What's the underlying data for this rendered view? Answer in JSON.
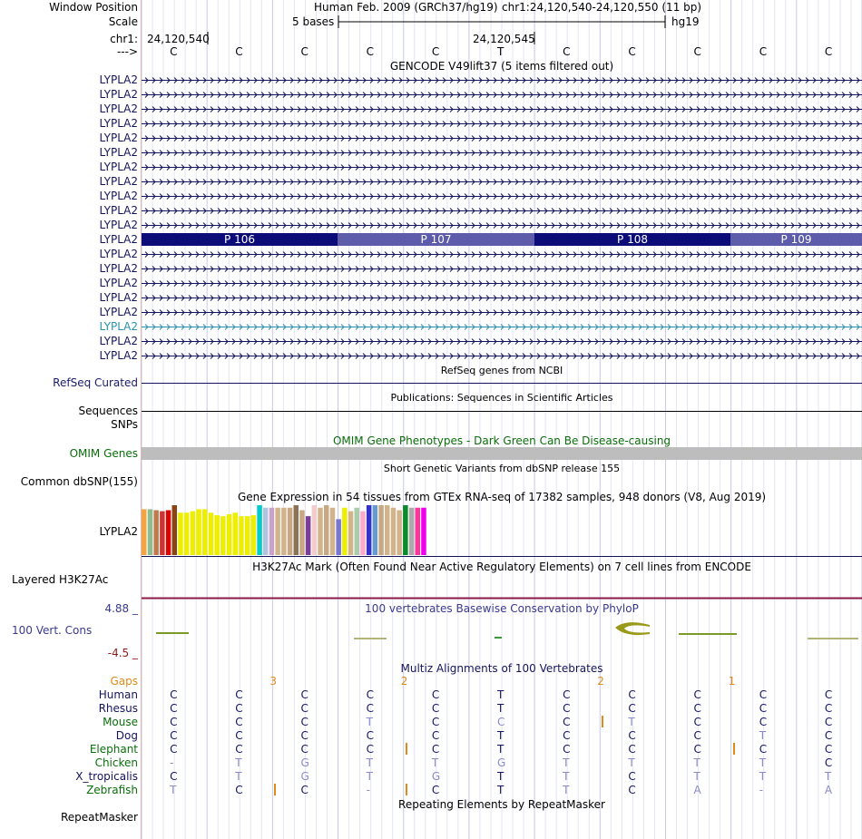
{
  "header": {
    "window_position_label": "Window Position",
    "assembly_text": "Human Feb. 2009 (GRCh37/hg19)",
    "region_text": "chr1:24,120,540-24,120,550 (11 bp)",
    "scale_label": "Scale",
    "scale_text": "5 bases",
    "hg19_label": "hg19",
    "chrom_label": "chr1:",
    "coord_start": "24,120,540",
    "coord_mid": "24,120,545",
    "strand_label": "--->",
    "bases": [
      "C",
      "C",
      "C",
      "C",
      "C",
      "T",
      "C",
      "C",
      "C",
      "C",
      "C"
    ]
  },
  "gencode": {
    "title": "GENCODE V49lift37 (5 items filtered out)",
    "gene_label": "LYPLA2",
    "rows": 20,
    "highlight_row": 11,
    "teal_row": 17,
    "exon_segments": [
      "P 106",
      "P 107",
      "P 108",
      "P 109"
    ],
    "colors": {
      "dark": "#0c0c78",
      "light": "#5c5cab",
      "teal": "#2892ae",
      "navy": "#14145e"
    }
  },
  "refseq": {
    "title": "RefSeq genes from NCBI",
    "label": "RefSeq Curated"
  },
  "publications": {
    "title": "Publications: Sequences in Scientific Articles",
    "label": "Sequences"
  },
  "snps": {
    "label": "SNPs"
  },
  "omim": {
    "title": "OMIM Gene Phenotypes - Dark Green Can Be Disease-causing",
    "label": "OMIM Genes",
    "color": "#0a6e0a"
  },
  "dbsnp": {
    "title": "Short Genetic Variants from dbSNP release 155",
    "label": "Common dbSNP(155)"
  },
  "gtex": {
    "title": "Gene Expression in 54 tissues from GTEx RNA-seq of 17382 samples, 948 donors (V8, Aug 2019)",
    "label": "LYPLA2"
  },
  "h3k27": {
    "title": "H3K27Ac Mark (Often Found Near Active Regulatory Elements) on 7 cell lines from ENCODE",
    "label": "Layered H3K27Ac"
  },
  "conservation": {
    "title": "100 vertebrates Basewise Conservation by PhyloP",
    "label": "100 Vert. Cons",
    "max_label": "4.88 _",
    "min_label": "-4.5 _"
  },
  "multiz": {
    "title": "Multiz Alignments of 100 Vertebrates",
    "gaps_label": "Gaps",
    "gap_numbers": [
      {
        "text": "3",
        "col": 1.5
      },
      {
        "text": "2",
        "col": 3.5
      },
      {
        "text": "2",
        "col": 6.5
      },
      {
        "text": "1",
        "col": 8.5
      }
    ],
    "species": [
      {
        "name": "Human",
        "color": "#14145e",
        "bases": [
          "C",
          "C",
          "C",
          "C",
          "C",
          "T",
          "C",
          "C",
          "C",
          "C",
          "C"
        ],
        "faint": []
      },
      {
        "name": "Rhesus",
        "color": "#14145e",
        "bases": [
          "C",
          "C",
          "C",
          "C",
          "C",
          "T",
          "C",
          "C",
          "C",
          "C",
          "C"
        ],
        "faint": []
      },
      {
        "name": "Mouse",
        "color": "#0a6e0a",
        "bases": [
          "C",
          "C",
          "C",
          "T",
          "C",
          "C",
          "C",
          "T",
          "C",
          "C",
          "C"
        ],
        "faint": [
          3,
          5,
          7
        ]
      },
      {
        "name": "Dog",
        "color": "#14145e",
        "bases": [
          "C",
          "C",
          "C",
          "C",
          "C",
          "T",
          "C",
          "C",
          "C",
          "T",
          "C"
        ],
        "faint": [
          9
        ]
      },
      {
        "name": "Elephant",
        "color": "#0a6e0a",
        "bases": [
          "C",
          "C",
          "C",
          "C",
          "C",
          "T",
          "C",
          "C",
          "C",
          "C",
          "C"
        ],
        "faint": []
      },
      {
        "name": "Chicken",
        "color": "#0a6e0a",
        "bases": [
          "-",
          "T",
          "G",
          "T",
          "T",
          "G",
          "T",
          "T",
          "T",
          "T",
          "C"
        ],
        "faint": [
          0,
          1,
          2,
          3,
          4,
          5,
          6,
          7,
          8,
          9
        ]
      },
      {
        "name": "X_tropicalis",
        "color": "#14145e",
        "bases": [
          "C",
          "T",
          "G",
          "T",
          "G",
          "T",
          "T",
          "C",
          "T",
          "T",
          "T"
        ],
        "faint": [
          1,
          2,
          3,
          4,
          6,
          8,
          9,
          10
        ]
      },
      {
        "name": "Zebrafish",
        "color": "#0a6e0a",
        "bases": [
          "T",
          "C",
          "C",
          "-",
          "C",
          "T",
          "T",
          "C",
          "A",
          "-",
          "A"
        ],
        "faint": [
          0,
          3,
          6,
          8,
          9,
          10
        ]
      }
    ]
  },
  "repeat": {
    "title": "Repeating Elements by RepeatMasker",
    "label": "RepeatMasker"
  },
  "gtex_bars": [
    {
      "c": "#f4a443",
      "v": 0.92
    },
    {
      "c": "#8fbc8f",
      "v": 0.92
    },
    {
      "c": "#c17a4a",
      "v": 0.9
    },
    {
      "c": "#cc3333",
      "v": 0.88
    },
    {
      "c": "#dd0000",
      "v": 0.9
    },
    {
      "c": "#8b4513",
      "v": 1.0
    },
    {
      "c": "#eeee00",
      "v": 0.85
    },
    {
      "c": "#eeee00",
      "v": 0.85
    },
    {
      "c": "#eeee00",
      "v": 0.88
    },
    {
      "c": "#eeee00",
      "v": 0.92
    },
    {
      "c": "#eeee00",
      "v": 0.92
    },
    {
      "c": "#eeee00",
      "v": 0.85
    },
    {
      "c": "#eeee00",
      "v": 0.8
    },
    {
      "c": "#eeee00",
      "v": 0.78
    },
    {
      "c": "#eeee00",
      "v": 0.82
    },
    {
      "c": "#eeee00",
      "v": 0.85
    },
    {
      "c": "#eeee00",
      "v": 0.78
    },
    {
      "c": "#eeee00",
      "v": 0.78
    },
    {
      "c": "#eeee00",
      "v": 0.8
    },
    {
      "c": "#00cccc",
      "v": 1.0
    },
    {
      "c": "#b0c4de",
      "v": 0.95
    },
    {
      "c": "#c8a2c8",
      "v": 0.95
    },
    {
      "c": "#d2b48c",
      "v": 0.95
    },
    {
      "c": "#d2b48c",
      "v": 0.95
    },
    {
      "c": "#c8a882",
      "v": 0.95
    },
    {
      "c": "#8b7355",
      "v": 1.0
    },
    {
      "c": "#c8a882",
      "v": 0.9
    },
    {
      "c": "#7b3f99",
      "v": 0.78
    },
    {
      "c": "#f4cccc",
      "v": 1.0
    },
    {
      "c": "#d2b48c",
      "v": 0.95
    },
    {
      "c": "#c8a882",
      "v": 1.0
    },
    {
      "c": "#d2b48c",
      "v": 0.95
    },
    {
      "c": "#7777cc",
      "v": 0.72
    },
    {
      "c": "#eeee00",
      "v": 0.95
    },
    {
      "c": "#d2b48c",
      "v": 0.88
    },
    {
      "c": "#aaccaa",
      "v": 0.95
    },
    {
      "c": "#ffaacc",
      "v": 0.88
    },
    {
      "c": "#3333cc",
      "v": 1.0
    },
    {
      "c": "#6699cc",
      "v": 1.0
    },
    {
      "c": "#c8a882",
      "v": 1.0
    },
    {
      "c": "#d2b48c",
      "v": 1.0
    },
    {
      "c": "#d2b48c",
      "v": 0.95
    },
    {
      "c": "#d2b48c",
      "v": 0.9
    },
    {
      "c": "#0a8a2a",
      "v": 1.0
    },
    {
      "c": "#aaaaaa",
      "v": 0.95
    },
    {
      "c": "#ff3399",
      "v": 0.95
    },
    {
      "c": "#ee00ee",
      "v": 0.95
    }
  ]
}
